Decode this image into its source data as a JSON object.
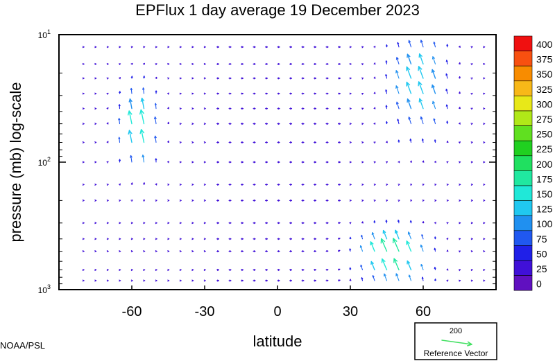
{
  "chart_data": {
    "type": "vector-field",
    "title": "EPFlux  1 day average  19 December 2023",
    "xlabel": "latitude",
    "ylabel": "pressure (mb)  log-scale",
    "xlim": [
      -90,
      90
    ],
    "ylim": [
      1000,
      10
    ],
    "y_scale": "log",
    "x_ticks": [
      {
        "value": -60,
        "label": "-60"
      },
      {
        "value": -30,
        "label": "-30"
      },
      {
        "value": 0,
        "label": "0"
      },
      {
        "value": 30,
        "label": "30"
      },
      {
        "value": 60,
        "label": "60"
      }
    ],
    "y_ticks": [
      {
        "value": 10,
        "base": "10",
        "exp": "1"
      },
      {
        "value": 100,
        "base": "10",
        "exp": "2"
      },
      {
        "value": 1000,
        "base": "10",
        "exp": "3"
      }
    ],
    "colorbar": {
      "levels": [
        "400",
        "375",
        "350",
        "325",
        "300",
        "275",
        "250",
        "225",
        "200",
        "175",
        "150",
        "125",
        "100",
        "75",
        "50",
        "25",
        "0"
      ],
      "colors": [
        "#f01010",
        "#f85010",
        "#f88c00",
        "#f8b818",
        "#e8e818",
        "#b0e818",
        "#60e020",
        "#20d020",
        "#20e060",
        "#20e8a0",
        "#20e8d8",
        "#20c8f0",
        "#2090f0",
        "#2058f0",
        "#2020e8",
        "#4010d8",
        "#6010c0"
      ]
    },
    "reference_vector": {
      "value": "200",
      "label": "Reference Vector",
      "color": "#40e060"
    },
    "credit": "NOAA/PSL"
  }
}
